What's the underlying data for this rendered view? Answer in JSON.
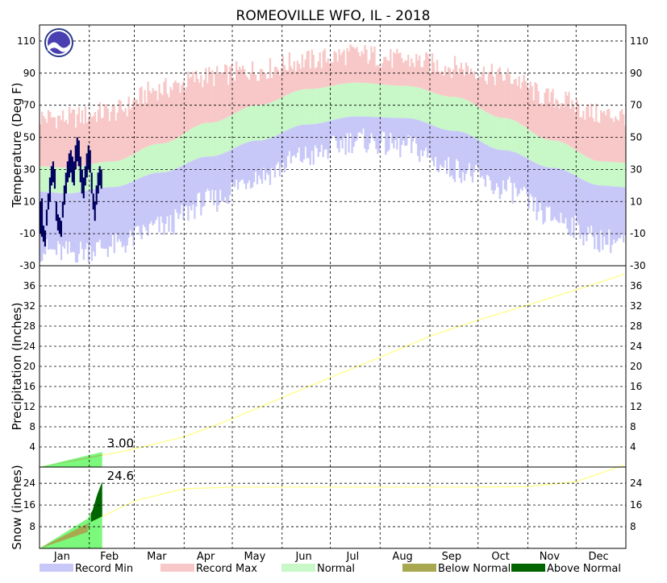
{
  "chart_data": {
    "type": "climate-summary",
    "title": "ROMEOVILLE  WFO, IL - 2018",
    "months": [
      "Jan",
      "Feb",
      "Mar",
      "Apr",
      "May",
      "Jun",
      "Jul",
      "Aug",
      "Sep",
      "Oct",
      "Nov",
      "Dec"
    ],
    "grid": true,
    "temperature": {
      "ylabel": "Temperature (Deg F)",
      "ylim": [
        -30,
        120
      ],
      "yticks": [
        -30,
        -10,
        10,
        30,
        50,
        70,
        90,
        110
      ],
      "normal_high_by_month": [
        31,
        35,
        46,
        59,
        70,
        80,
        84,
        82,
        75,
        62,
        48,
        35
      ],
      "normal_low_by_month": [
        15,
        19,
        28,
        38,
        48,
        58,
        63,
        62,
        54,
        42,
        31,
        20
      ],
      "record_max_by_month": [
        62,
        66,
        80,
        88,
        92,
        98,
        102,
        98,
        94,
        88,
        74,
        64
      ],
      "record_min_by_month": [
        -22,
        -18,
        -6,
        10,
        26,
        38,
        48,
        44,
        30,
        18,
        0,
        -14
      ],
      "observed_through_day": 39,
      "observed_highs": [
        10,
        12,
        -5,
        -8,
        5,
        15,
        25,
        32,
        35,
        30,
        10,
        2,
        0,
        -2,
        10,
        20,
        28,
        35,
        40,
        42,
        38,
        35,
        45,
        50,
        48,
        38,
        30,
        25,
        32,
        40,
        45,
        42,
        28,
        15,
        10,
        20,
        28,
        32,
        30
      ],
      "observed_lows": [
        -10,
        -12,
        -15,
        -18,
        -5,
        5,
        10,
        20,
        22,
        18,
        -2,
        -8,
        -10,
        -12,
        0,
        8,
        15,
        22,
        25,
        28,
        22,
        20,
        30,
        35,
        32,
        22,
        15,
        12,
        20,
        25,
        30,
        28,
        15,
        5,
        -2,
        8,
        15,
        20,
        18
      ]
    },
    "precipitation": {
      "ylabel": "Precipitation (Inches)",
      "yticks": [
        4,
        8,
        12,
        16,
        20,
        24,
        28,
        32,
        36
      ],
      "ylim": [
        0,
        40
      ],
      "ytd_label": "3.00",
      "ytd_value": 3.0,
      "normal_cumulative_end_of_month": [
        1.8,
        3.6,
        6.0,
        9.6,
        13.8,
        17.8,
        21.8,
        26.0,
        29.2,
        32.2,
        35.2,
        38.4
      ]
    },
    "snow": {
      "ylabel": "Snow (inches)",
      "yticks": [
        8,
        16,
        24
      ],
      "ylim": [
        0,
        30
      ],
      "ytd_label": "24.6",
      "ytd_value": 24.6,
      "normal_cumulative_end_of_month": [
        9.5,
        17.5,
        22.0,
        22.6,
        22.6,
        22.6,
        22.6,
        22.6,
        22.6,
        22.8,
        24.6,
        31.0
      ]
    },
    "legend": [
      {
        "label": "Record Min",
        "color": "#c8c8f8"
      },
      {
        "label": "Record Max",
        "color": "#f8c8c8"
      },
      {
        "label": "Normal",
        "color": "#c8f8c8"
      },
      {
        "label": "Below Normal",
        "color": "#a8a850"
      },
      {
        "label": "Above Normal",
        "color": "#006400"
      }
    ],
    "colors": {
      "observed": "#000060",
      "normal_line": "#ffff88",
      "ytd_fill": "#7cf87c"
    }
  }
}
